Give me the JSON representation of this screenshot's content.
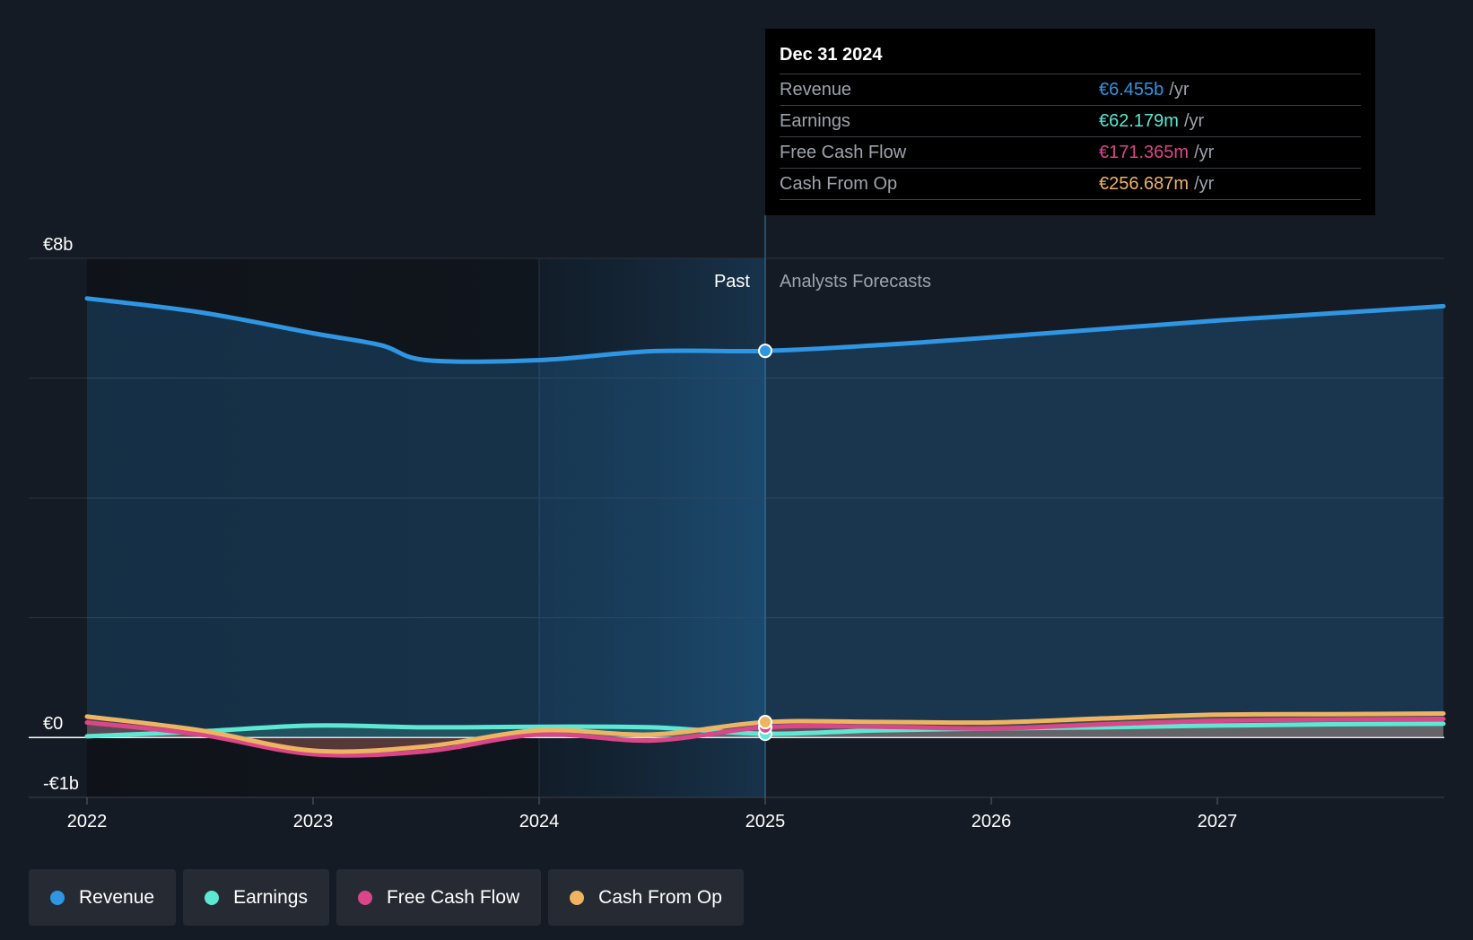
{
  "chart_data": {
    "type": "line",
    "x_axis": {
      "ticks": [
        "2022",
        "2023",
        "2024",
        "2025",
        "2026",
        "2027"
      ],
      "range": [
        2022,
        2028
      ]
    },
    "y_axis": {
      "ticks": [
        {
          "value": 8,
          "label": "€8b"
        },
        {
          "value": 0,
          "label": "€0"
        },
        {
          "value": -1,
          "label": "-€1b"
        }
      ],
      "range": [
        -1,
        8
      ],
      "unit": "€b"
    },
    "regions": {
      "past_label": "Past",
      "forecast_label": "Analysts Forecasts",
      "divider_x": 2025.0
    },
    "series": [
      {
        "name": "Revenue",
        "color": "#2e96e3",
        "points": [
          [
            2022.0,
            7.33
          ],
          [
            2022.5,
            7.1
          ],
          [
            2023.0,
            6.75
          ],
          [
            2023.3,
            6.55
          ],
          [
            2023.5,
            6.3
          ],
          [
            2024.0,
            6.3
          ],
          [
            2024.5,
            6.45
          ],
          [
            2025.0,
            6.455
          ],
          [
            2025.5,
            6.55
          ],
          [
            2026.0,
            6.68
          ],
          [
            2026.5,
            6.82
          ],
          [
            2027.0,
            6.96
          ],
          [
            2027.5,
            7.08
          ],
          [
            2028.0,
            7.2
          ]
        ]
      },
      {
        "name": "Earnings",
        "color": "#5ce8d2",
        "points": [
          [
            2022.0,
            0.02
          ],
          [
            2022.5,
            0.1
          ],
          [
            2023.0,
            0.2
          ],
          [
            2023.5,
            0.17
          ],
          [
            2024.0,
            0.18
          ],
          [
            2024.5,
            0.17
          ],
          [
            2025.0,
            0.062
          ],
          [
            2025.5,
            0.12
          ],
          [
            2026.0,
            0.15
          ],
          [
            2026.5,
            0.17
          ],
          [
            2027.0,
            0.2
          ],
          [
            2027.5,
            0.22
          ],
          [
            2028.0,
            0.23
          ]
        ]
      },
      {
        "name": "Free Cash Flow",
        "color": "#d9468a",
        "points": [
          [
            2022.0,
            0.25
          ],
          [
            2022.5,
            0.05
          ],
          [
            2023.0,
            -0.28
          ],
          [
            2023.5,
            -0.23
          ],
          [
            2024.0,
            0.05
          ],
          [
            2024.5,
            -0.05
          ],
          [
            2025.0,
            0.171
          ],
          [
            2025.5,
            0.18
          ],
          [
            2026.0,
            0.15
          ],
          [
            2026.5,
            0.22
          ],
          [
            2027.0,
            0.28
          ],
          [
            2027.5,
            0.3
          ],
          [
            2028.0,
            0.31
          ]
        ]
      },
      {
        "name": "Cash From Op",
        "color": "#eeb461",
        "points": [
          [
            2022.0,
            0.35
          ],
          [
            2022.5,
            0.12
          ],
          [
            2023.0,
            -0.22
          ],
          [
            2023.5,
            -0.15
          ],
          [
            2024.0,
            0.12
          ],
          [
            2024.5,
            0.05
          ],
          [
            2025.0,
            0.257
          ],
          [
            2025.5,
            0.26
          ],
          [
            2026.0,
            0.25
          ],
          [
            2026.5,
            0.32
          ],
          [
            2027.0,
            0.38
          ],
          [
            2027.5,
            0.39
          ],
          [
            2028.0,
            0.4
          ]
        ]
      }
    ],
    "tooltip": {
      "date": "Dec 31 2024",
      "rows": [
        {
          "name": "Revenue",
          "value": "€6.455b",
          "unit": "/yr",
          "color": "#2e96e3"
        },
        {
          "name": "Earnings",
          "value": "€62.179m",
          "unit": "/yr",
          "color": "#5ce8d2"
        },
        {
          "name": "Free Cash Flow",
          "value": "€171.365m",
          "unit": "/yr",
          "color": "#d9468a"
        },
        {
          "name": "Cash From Op",
          "value": "€256.687m",
          "unit": "/yr",
          "color": "#eeb461"
        }
      ]
    },
    "legend": [
      {
        "label": "Revenue",
        "color": "#2e96e3"
      },
      {
        "label": "Earnings",
        "color": "#5ce8d2"
      },
      {
        "label": "Free Cash Flow",
        "color": "#d9468a"
      },
      {
        "label": "Cash From Op",
        "color": "#eeb461"
      }
    ]
  }
}
